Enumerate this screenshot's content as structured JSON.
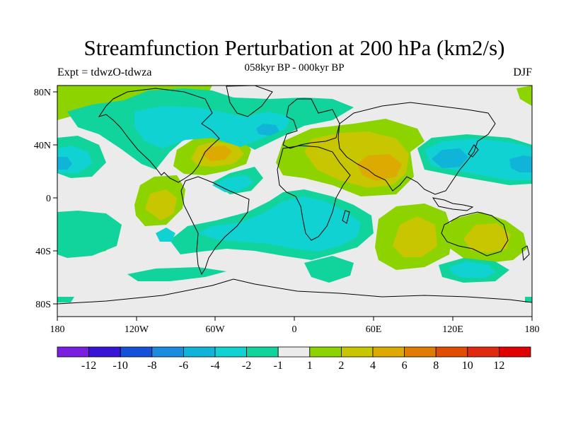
{
  "title": "Streamfunction Perturbation at 200 hPa (km2/s)",
  "subtitle": "058kyr BP - 000kyr BP",
  "left_string": "Expt = tdwzO-tdwza",
  "right_string": "DJF",
  "map": {
    "lat_ticks": [
      "80N",
      "40N",
      "0",
      "40S",
      "80S"
    ],
    "lon_ticks": [
      "180",
      "120W",
      "60W",
      "0",
      "60E",
      "120E",
      "180"
    ]
  },
  "legend": {
    "colors": [
      "#7a1ee0",
      "#3a14d6",
      "#1450d8",
      "#1a8ce0",
      "#0fb4d8",
      "#10d2d2",
      "#10d49c",
      "#ebebeb",
      "#8cd300",
      "#c8c600",
      "#dcaa00",
      "#e07c00",
      "#e04c00",
      "#e02a10",
      "#e00000"
    ],
    "labels": [
      "-12",
      "-10",
      "-8",
      "-6",
      "-4",
      "-2",
      "-1",
      "1",
      "2",
      "4",
      "6",
      "8",
      "10",
      "12"
    ]
  }
}
